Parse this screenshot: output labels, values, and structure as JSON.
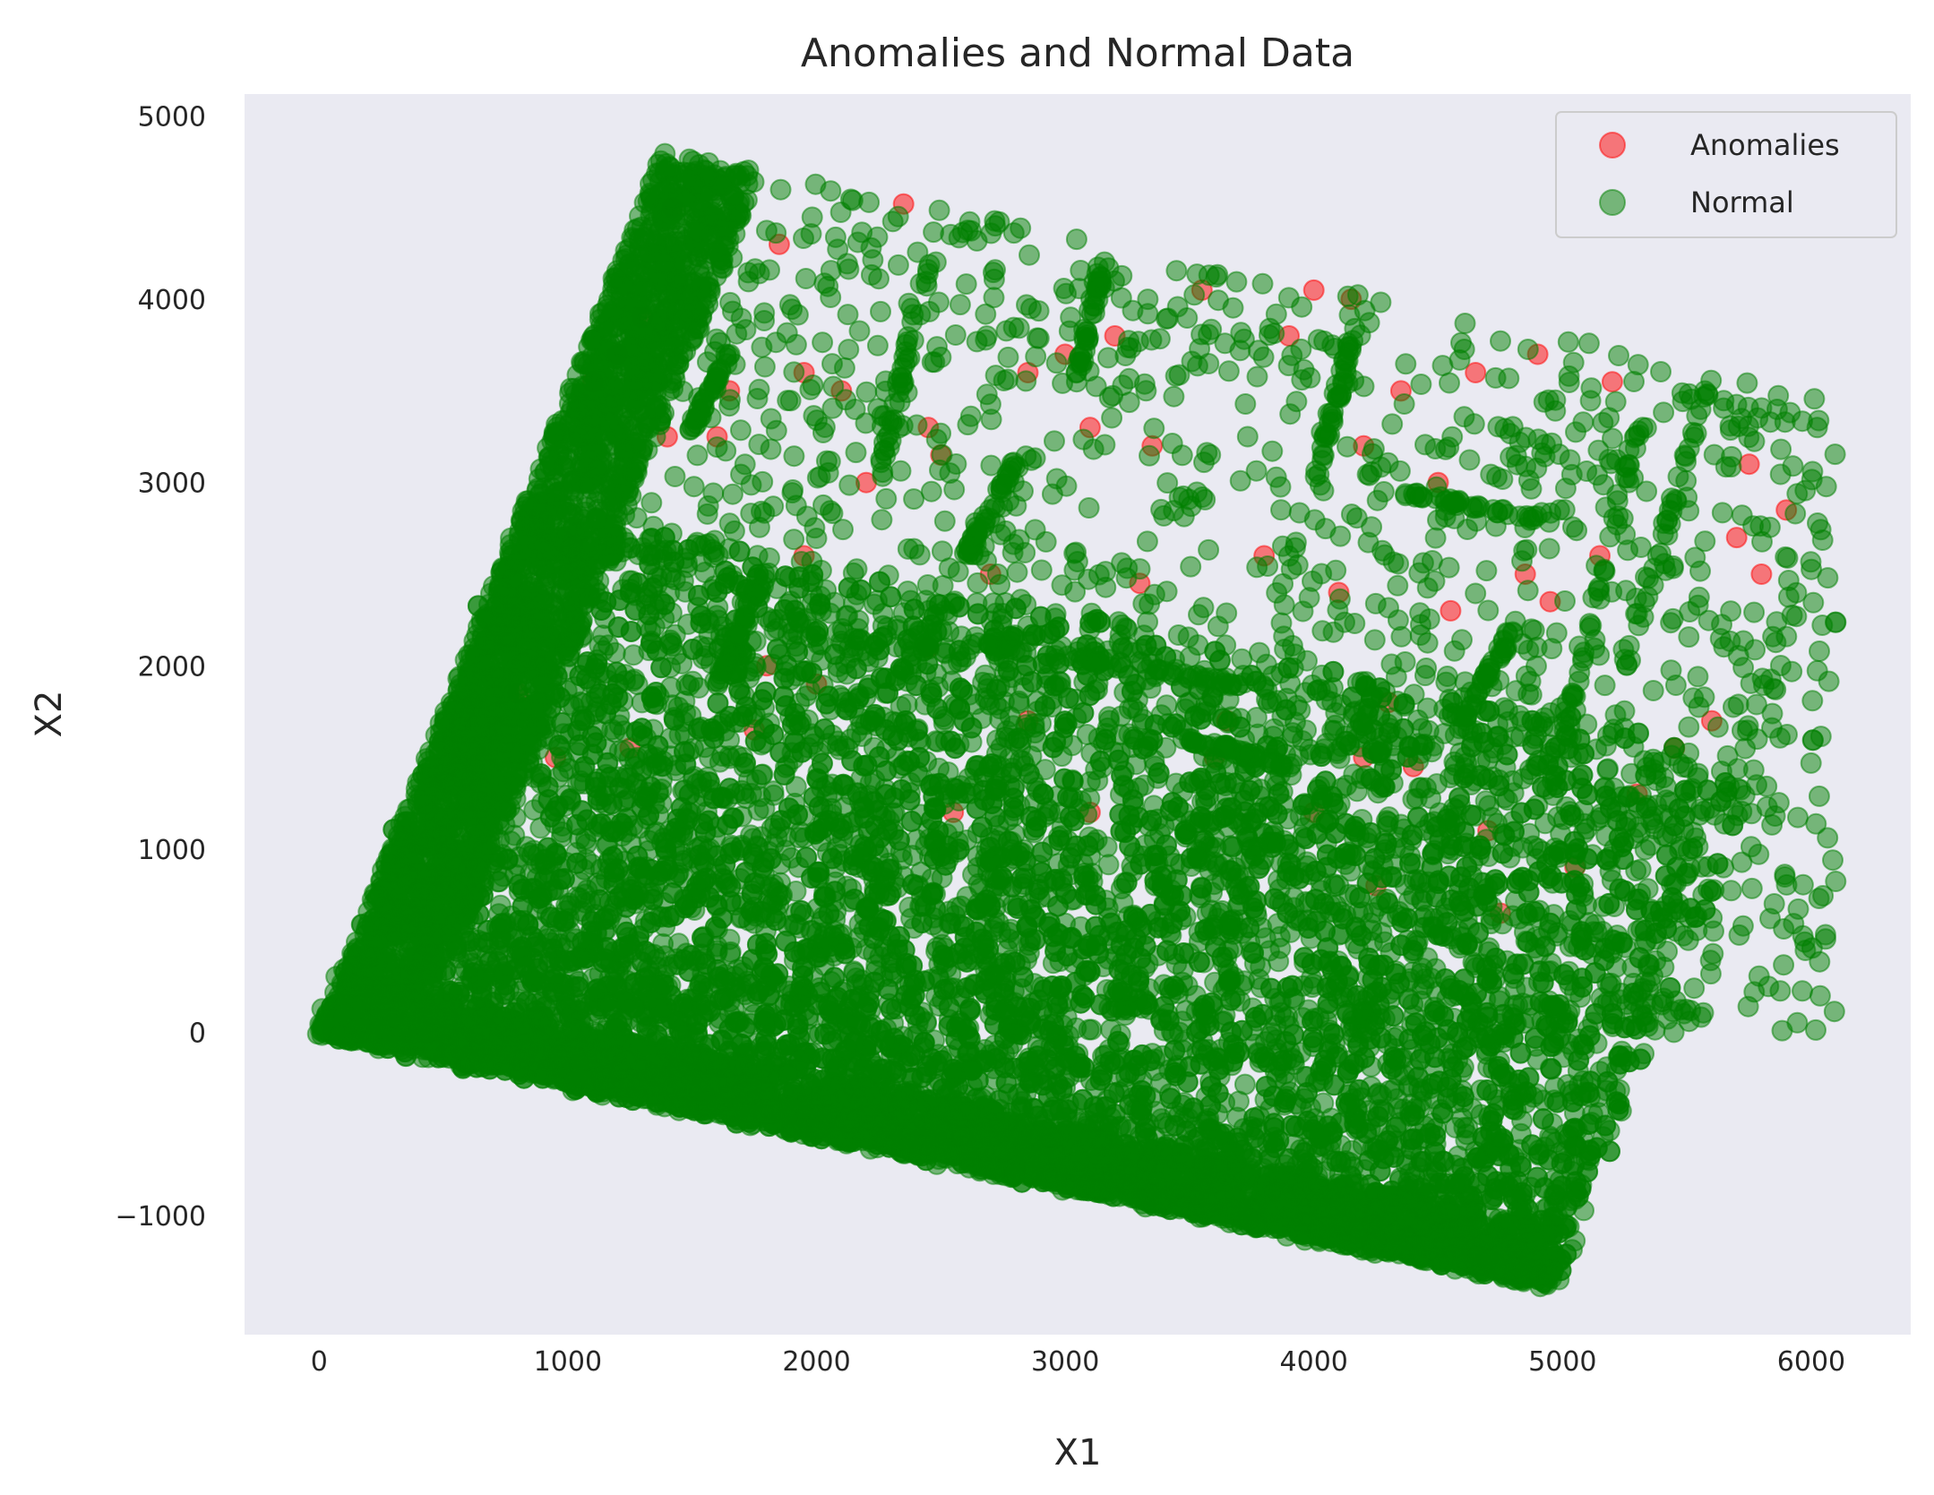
{
  "chart_data": {
    "type": "scatter",
    "title": "Anomalies and Normal Data",
    "xlabel": "X1",
    "ylabel": "X2",
    "xlim": [
      -300,
      6400
    ],
    "ylim": [
      -1650,
      5120
    ],
    "xticks": [
      0,
      1000,
      2000,
      3000,
      4000,
      5000,
      6000
    ],
    "yticks": [
      -1000,
      0,
      1000,
      2000,
      3000,
      4000,
      5000
    ],
    "xtick_labels": [
      "0",
      "1000",
      "2000",
      "3000",
      "4000",
      "5000",
      "6000"
    ],
    "ytick_labels": [
      "−1000",
      "0",
      "1000",
      "2000",
      "3000",
      "4000",
      "5000"
    ],
    "grid": false,
    "legend_position": "top-right",
    "series": [
      {
        "name": "Anomalies",
        "color": "#ff0000",
        "alpha": 0.5,
        "points": [
          [
            1420,
            4500
          ],
          [
            2350,
            4520
          ],
          [
            1950,
            3600
          ],
          [
            2100,
            3500
          ],
          [
            2450,
            3300
          ],
          [
            1400,
            3250
          ],
          [
            2500,
            3150
          ],
          [
            2850,
            3600
          ],
          [
            3000,
            3700
          ],
          [
            3100,
            3300
          ],
          [
            3350,
            3200
          ],
          [
            3200,
            3800
          ],
          [
            3550,
            4050
          ],
          [
            4000,
            4050
          ],
          [
            4150,
            4000
          ],
          [
            3900,
            3800
          ],
          [
            4350,
            3500
          ],
          [
            4650,
            3600
          ],
          [
            4900,
            3700
          ],
          [
            5200,
            3550
          ],
          [
            5900,
            2850
          ],
          [
            5750,
            3100
          ],
          [
            4200,
            3200
          ],
          [
            4500,
            3000
          ],
          [
            4550,
            2300
          ],
          [
            4850,
            2500
          ],
          [
            3650,
            1700
          ],
          [
            4200,
            1500
          ],
          [
            3300,
            2450
          ],
          [
            3800,
            2600
          ],
          [
            4100,
            2400
          ],
          [
            2700,
            2500
          ],
          [
            2450,
            2100
          ],
          [
            1800,
            2000
          ],
          [
            1950,
            2600
          ],
          [
            2200,
            3000
          ],
          [
            1600,
            3250
          ],
          [
            1650,
            3500
          ],
          [
            1850,
            4300
          ],
          [
            1300,
            3900
          ],
          [
            1100,
            3550
          ],
          [
            1200,
            3700
          ],
          [
            1250,
            1550
          ],
          [
            800,
            1850
          ],
          [
            950,
            1500
          ],
          [
            2550,
            1200
          ],
          [
            3100,
            1200
          ],
          [
            4000,
            1200
          ],
          [
            4400,
            1450
          ],
          [
            4700,
            1100
          ],
          [
            5050,
            900
          ],
          [
            5300,
            1300
          ],
          [
            5450,
            1550
          ],
          [
            5800,
            2500
          ],
          [
            4950,
            2350
          ],
          [
            5150,
            2600
          ],
          [
            2850,
            1700
          ],
          [
            3600,
            1500
          ],
          [
            4250,
            800
          ],
          [
            4750,
            650
          ],
          [
            2000,
            1900
          ],
          [
            1750,
            1650
          ],
          [
            4300,
            1800
          ],
          [
            5600,
            1700
          ],
          [
            5700,
            2700
          ]
        ]
      },
      {
        "name": "Normal",
        "color": "#008000",
        "alpha": 0.5,
        "points": []
      }
    ]
  }
}
